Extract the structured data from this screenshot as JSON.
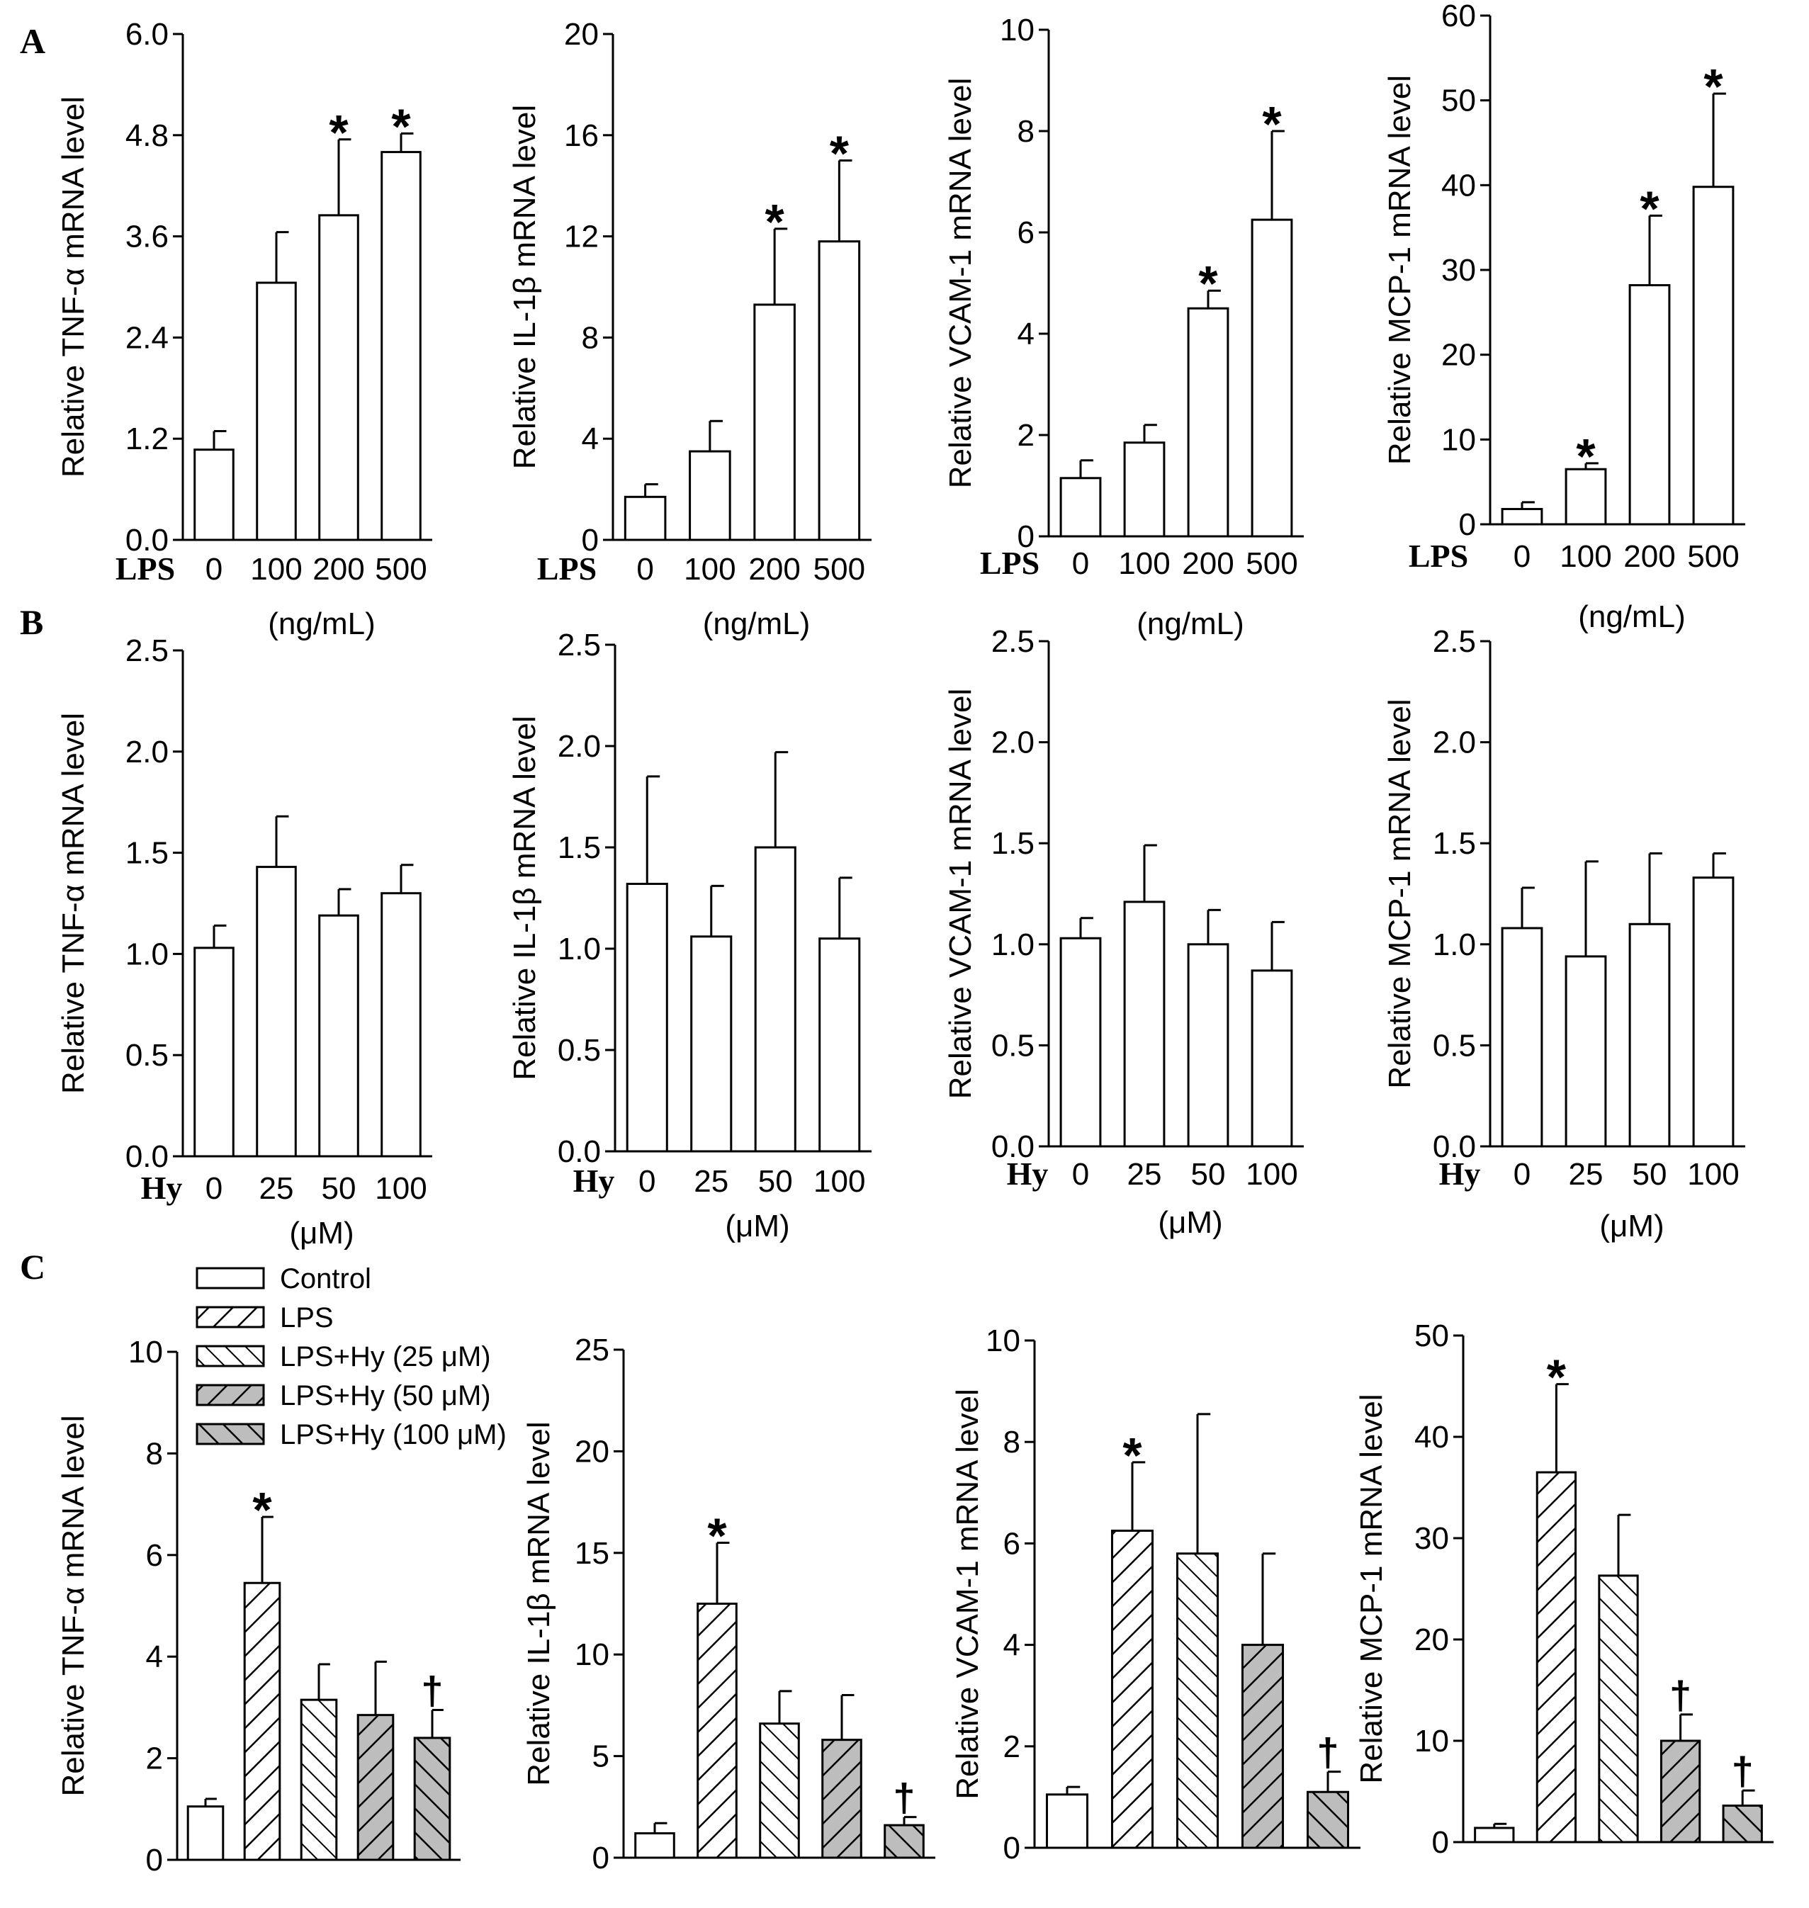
{
  "panel_letters": [
    "A",
    "B",
    "C"
  ],
  "legend": {
    "items": [
      {
        "label": "Control",
        "pattern": "none"
      },
      {
        "label": "LPS",
        "pattern": "hatchR"
      },
      {
        "label": "LPS+Hy (25 μM)",
        "pattern": "hatchL"
      },
      {
        "label": "LPS+Hy (50 μM)",
        "pattern": "grayR"
      },
      {
        "label": "LPS+Hy (100 μM)",
        "pattern": "grayL"
      }
    ]
  },
  "chart_data": [
    {
      "id": "A1",
      "panel": "A",
      "type": "bar",
      "ylabel": "Relative TNF-α  mRNA level",
      "ylim": [
        0,
        6
      ],
      "yticks": [
        "0.0",
        "1.2",
        "2.4",
        "3.6",
        "4.8",
        "6.0"
      ],
      "condition": "LPS",
      "categories": [
        "0",
        "100",
        "200",
        "500"
      ],
      "unit": "(ng/mL)",
      "values": [
        1.07,
        3.05,
        3.85,
        4.6
      ],
      "errors": [
        0.22,
        0.6,
        0.9,
        0.22
      ],
      "markers": [
        "",
        "",
        "*",
        "*"
      ],
      "patterns": [
        "none",
        "none",
        "none",
        "none"
      ]
    },
    {
      "id": "A2",
      "panel": "A",
      "type": "bar",
      "ylabel": "Relative IL-1β  mRNA level",
      "ylim": [
        0,
        20
      ],
      "yticks": [
        "0",
        "4",
        "8",
        "12",
        "16",
        "20"
      ],
      "condition": "LPS",
      "categories": [
        "0",
        "100",
        "200",
        "500"
      ],
      "unit": "(ng/mL)",
      "values": [
        1.7,
        3.5,
        9.3,
        11.8
      ],
      "errors": [
        0.5,
        1.2,
        3.0,
        3.2
      ],
      "markers": [
        "",
        "",
        "*",
        "*"
      ],
      "patterns": [
        "none",
        "none",
        "none",
        "none"
      ]
    },
    {
      "id": "A3",
      "panel": "A",
      "type": "bar",
      "ylabel": "Relative VCAM-1 mRNA level",
      "ylim": [
        0,
        10
      ],
      "yticks": [
        "0",
        "2",
        "4",
        "6",
        "8",
        "10"
      ],
      "condition": "LPS",
      "categories": [
        "0",
        "100",
        "200",
        "500"
      ],
      "unit": "(ng/mL)",
      "values": [
        1.15,
        1.85,
        4.5,
        6.25
      ],
      "errors": [
        0.35,
        0.35,
        0.35,
        1.75
      ],
      "markers": [
        "",
        "",
        "*",
        "*"
      ],
      "patterns": [
        "none",
        "none",
        "none",
        "none"
      ]
    },
    {
      "id": "A4",
      "panel": "A",
      "type": "bar",
      "ylabel": "Relative MCP-1 mRNA level",
      "ylim": [
        0,
        60
      ],
      "yticks": [
        "0",
        "10",
        "20",
        "30",
        "40",
        "50",
        "60"
      ],
      "condition": "LPS",
      "categories": [
        "0",
        "100",
        "200",
        "500"
      ],
      "unit": "(ng/mL)",
      "values": [
        1.8,
        6.5,
        28.2,
        39.8
      ],
      "errors": [
        0.8,
        0.7,
        8.2,
        11.0
      ],
      "markers": [
        "",
        "*",
        "*",
        "*"
      ],
      "patterns": [
        "none",
        "none",
        "none",
        "none"
      ]
    },
    {
      "id": "B1",
      "panel": "B",
      "type": "bar",
      "ylabel": "Relative TNF-α  mRNA level",
      "ylim": [
        0,
        2.5
      ],
      "yticks": [
        "0.0",
        "0.5",
        "1.0",
        "1.5",
        "2.0",
        "2.5"
      ],
      "condition": "Hy",
      "categories": [
        "0",
        "25",
        "50",
        "100"
      ],
      "unit": "(μM)",
      "values": [
        1.03,
        1.43,
        1.19,
        1.3
      ],
      "errors": [
        0.11,
        0.25,
        0.13,
        0.14
      ],
      "markers": [
        "",
        "",
        "",
        ""
      ],
      "patterns": [
        "none",
        "none",
        "none",
        "none"
      ]
    },
    {
      "id": "B2",
      "panel": "B",
      "type": "bar",
      "ylabel": "Relative IL-1β  mRNA level",
      "ylim": [
        0,
        2.5
      ],
      "yticks": [
        "0.0",
        "0.5",
        "1.0",
        "1.5",
        "2.0",
        "2.5"
      ],
      "condition": "Hy",
      "categories": [
        "0",
        "25",
        "50",
        "100"
      ],
      "unit": "(μM)",
      "values": [
        1.32,
        1.06,
        1.5,
        1.05
      ],
      "errors": [
        0.53,
        0.25,
        0.47,
        0.3
      ],
      "markers": [
        "",
        "",
        "",
        ""
      ],
      "patterns": [
        "none",
        "none",
        "none",
        "none"
      ]
    },
    {
      "id": "B3",
      "panel": "B",
      "type": "bar",
      "ylabel": "Relative VCAM-1 mRNA level",
      "ylim": [
        0,
        2.5
      ],
      "yticks": [
        "0.0",
        "0.5",
        "1.0",
        "1.5",
        "2.0",
        "2.5"
      ],
      "condition": "Hy",
      "categories": [
        "0",
        "25",
        "50",
        "100"
      ],
      "unit": "(μM)",
      "values": [
        1.03,
        1.21,
        1.0,
        0.87
      ],
      "errors": [
        0.1,
        0.28,
        0.17,
        0.24
      ],
      "markers": [
        "",
        "",
        "",
        ""
      ],
      "patterns": [
        "none",
        "none",
        "none",
        "none"
      ]
    },
    {
      "id": "B4",
      "panel": "B",
      "type": "bar",
      "ylabel": "Relative MCP-1 mRNA level",
      "ylim": [
        0,
        2.5
      ],
      "yticks": [
        "0.0",
        "0.5",
        "1.0",
        "1.5",
        "2.0",
        "2.5"
      ],
      "condition": "Hy",
      "categories": [
        "0",
        "25",
        "50",
        "100"
      ],
      "unit": "(μM)",
      "values": [
        1.08,
        0.94,
        1.1,
        1.33
      ],
      "errors": [
        0.2,
        0.47,
        0.35,
        0.12
      ],
      "markers": [
        "",
        "",
        "",
        ""
      ],
      "patterns": [
        "none",
        "none",
        "none",
        "none"
      ]
    },
    {
      "id": "C1",
      "panel": "C",
      "type": "bar",
      "ylabel": "Relative TNF-α  mRNA level",
      "ylim": [
        0,
        10
      ],
      "yticks": [
        "0",
        "2",
        "4",
        "6",
        "8",
        "10"
      ],
      "series": [
        "Control",
        "LPS",
        "LPS+Hy (25 μM)",
        "LPS+Hy (50 μM)",
        "LPS+Hy (100 μM)"
      ],
      "values": [
        1.05,
        5.45,
        3.15,
        2.85,
        2.4
      ],
      "errors": [
        0.15,
        1.3,
        0.7,
        1.05,
        0.55
      ],
      "markers": [
        "",
        "*",
        "",
        "",
        "†"
      ],
      "patterns": [
        "none",
        "hatchR",
        "hatchL",
        "grayR",
        "grayL"
      ]
    },
    {
      "id": "C2",
      "panel": "C",
      "type": "bar",
      "ylabel": "Relative IL-1β  mRNA level",
      "ylim": [
        0,
        25
      ],
      "yticks": [
        "0",
        "5",
        "10",
        "15",
        "20",
        "25"
      ],
      "series": [
        "Control",
        "LPS",
        "LPS+Hy (25 μM)",
        "LPS+Hy (50 μM)",
        "LPS+Hy (100 μM)"
      ],
      "values": [
        1.2,
        12.5,
        6.6,
        5.8,
        1.6
      ],
      "errors": [
        0.5,
        3.0,
        1.6,
        2.2,
        0.4
      ],
      "markers": [
        "",
        "*",
        "",
        "",
        "†"
      ],
      "patterns": [
        "none",
        "hatchR",
        "hatchL",
        "grayR",
        "grayL"
      ]
    },
    {
      "id": "C3",
      "panel": "C",
      "type": "bar",
      "ylabel": "Relative VCAM-1 mRNA level",
      "ylim": [
        0,
        10
      ],
      "yticks": [
        "0",
        "2",
        "4",
        "6",
        "8",
        "10"
      ],
      "series": [
        "Control",
        "LPS",
        "LPS+Hy (25 μM)",
        "LPS+Hy (50 μM)",
        "LPS+Hy (100 μM)"
      ],
      "values": [
        1.05,
        6.25,
        5.8,
        4.0,
        1.1
      ],
      "errors": [
        0.15,
        1.35,
        2.75,
        1.8,
        0.4
      ],
      "markers": [
        "",
        "*",
        "",
        "",
        "†"
      ],
      "patterns": [
        "none",
        "hatchR",
        "hatchL",
        "grayR",
        "grayL"
      ]
    },
    {
      "id": "C4",
      "panel": "C",
      "type": "bar",
      "ylabel": "Relative MCP-1 mRNA level",
      "ylim": [
        0,
        50
      ],
      "yticks": [
        "0",
        "10",
        "20",
        "30",
        "40",
        "50"
      ],
      "series": [
        "Control",
        "LPS",
        "LPS+Hy (25 μM)",
        "LPS+Hy (50 μM)",
        "LPS+Hy (100 μM)"
      ],
      "values": [
        1.4,
        36.5,
        26.3,
        10.0,
        3.6
      ],
      "errors": [
        0.4,
        8.7,
        6.0,
        2.6,
        1.5
      ],
      "markers": [
        "",
        "*",
        "",
        "†",
        "†"
      ],
      "patterns": [
        "none",
        "hatchR",
        "hatchL",
        "grayR",
        "grayL"
      ]
    }
  ]
}
